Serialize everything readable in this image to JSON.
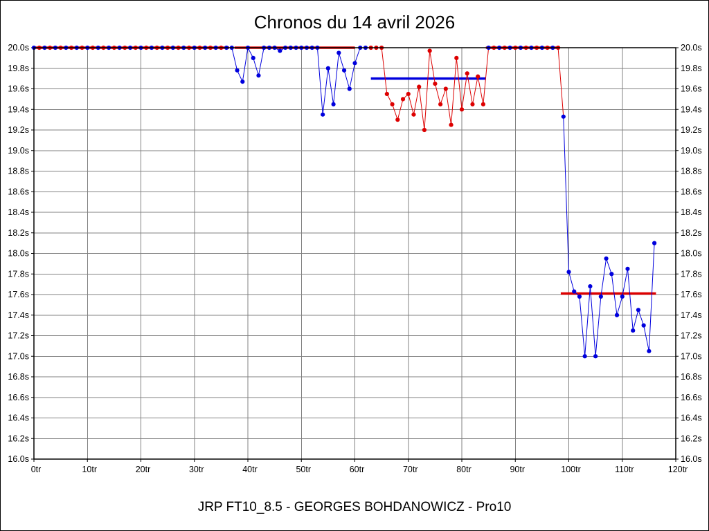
{
  "title": "Chronos du 14 avril 2026",
  "footer": "JRP FT10_8.5 - GEORGES BOHDANOWICZ - Pro10",
  "chart_data": {
    "type": "scatter",
    "title": "Chronos du 14 avril 2026",
    "x_unit": "tr",
    "y_unit": "s",
    "xlim": [
      0,
      120
    ],
    "ylim": [
      16.0,
      20.0
    ],
    "grid": true,
    "legend": "none",
    "x_ticks": [
      0,
      10,
      20,
      30,
      40,
      50,
      60,
      70,
      80,
      90,
      100,
      110,
      120
    ],
    "x_tick_labels": [
      "0tr",
      "10tr",
      "20tr",
      "30tr",
      "40tr",
      "50tr",
      "60tr",
      "70tr",
      "80tr",
      "90tr",
      "100tr",
      "110tr",
      "120tr"
    ],
    "y_ticks": [
      16.0,
      16.2,
      16.4,
      16.6,
      16.8,
      17.0,
      17.2,
      17.4,
      17.6,
      17.8,
      18.0,
      18.2,
      18.4,
      18.6,
      18.8,
      19.0,
      19.2,
      19.4,
      19.6,
      19.8,
      20.0
    ],
    "y_tick_labels": [
      "16.0s",
      "16.2s",
      "16.4s",
      "16.6s",
      "16.8s",
      "17.0s",
      "17.2s",
      "17.4s",
      "17.6s",
      "17.8s",
      "18.0s",
      "18.2s",
      "18.4s",
      "18.6s",
      "18.8s",
      "19.0s",
      "19.2s",
      "19.4s",
      "19.6s",
      "19.8s",
      "20.0s"
    ],
    "colors": {
      "blue": "#0000dd",
      "red": "#dd0000",
      "grid": "#808080",
      "frame": "#000000"
    },
    "points": [
      [
        0,
        20,
        "b"
      ],
      [
        1,
        20,
        "r"
      ],
      [
        2,
        20,
        "b"
      ],
      [
        3,
        20,
        "r"
      ],
      [
        4,
        20,
        "b"
      ],
      [
        5,
        20,
        "r"
      ],
      [
        6,
        20,
        "b"
      ],
      [
        7,
        20,
        "r"
      ],
      [
        8,
        20,
        "b"
      ],
      [
        9,
        20,
        "r"
      ],
      [
        10,
        20,
        "b"
      ],
      [
        11,
        20,
        "r"
      ],
      [
        12,
        20,
        "b"
      ],
      [
        13,
        20,
        "r"
      ],
      [
        14,
        20,
        "b"
      ],
      [
        15,
        20,
        "r"
      ],
      [
        16,
        20,
        "b"
      ],
      [
        17,
        20,
        "r"
      ],
      [
        18,
        20,
        "b"
      ],
      [
        19,
        20,
        "r"
      ],
      [
        20,
        20,
        "b"
      ],
      [
        21,
        20,
        "r"
      ],
      [
        22,
        20,
        "b"
      ],
      [
        23,
        20,
        "r"
      ],
      [
        24,
        20,
        "b"
      ],
      [
        25,
        20,
        "r"
      ],
      [
        26,
        20,
        "b"
      ],
      [
        27,
        20,
        "r"
      ],
      [
        28,
        20,
        "b"
      ],
      [
        29,
        20,
        "r"
      ],
      [
        30,
        20,
        "b"
      ],
      [
        31,
        20,
        "r"
      ],
      [
        32,
        20,
        "b"
      ],
      [
        33,
        20,
        "r"
      ],
      [
        34,
        20,
        "b"
      ],
      [
        35,
        20,
        "r"
      ],
      [
        36,
        20,
        "b"
      ],
      [
        37,
        20,
        "b"
      ],
      [
        38,
        19.78,
        "b"
      ],
      [
        39,
        19.67,
        "b"
      ],
      [
        40,
        20,
        "b"
      ],
      [
        41,
        19.9,
        "b"
      ],
      [
        42,
        19.73,
        "b"
      ],
      [
        43,
        20,
        "b"
      ],
      [
        44,
        20,
        "b"
      ],
      [
        45,
        20,
        "b"
      ],
      [
        46,
        19.97,
        "b"
      ],
      [
        47,
        20,
        "b"
      ],
      [
        48,
        20,
        "b"
      ],
      [
        49,
        20,
        "b"
      ],
      [
        50,
        20,
        "b"
      ],
      [
        51,
        20,
        "b"
      ],
      [
        52,
        20,
        "b"
      ],
      [
        53,
        20,
        "b"
      ],
      [
        54,
        19.35,
        "b"
      ],
      [
        55,
        19.8,
        "b"
      ],
      [
        56,
        19.45,
        "b"
      ],
      [
        57,
        19.95,
        "b"
      ],
      [
        58,
        19.78,
        "b"
      ],
      [
        59,
        19.6,
        "b"
      ],
      [
        60,
        19.85,
        "b"
      ],
      [
        61,
        20,
        "b"
      ],
      [
        62,
        20,
        "b"
      ],
      [
        63,
        20,
        "r"
      ],
      [
        64,
        20,
        "r"
      ],
      [
        65,
        20,
        "r"
      ],
      [
        66,
        19.55,
        "r"
      ],
      [
        67,
        19.45,
        "r"
      ],
      [
        68,
        19.3,
        "r"
      ],
      [
        69,
        19.5,
        "r"
      ],
      [
        70,
        19.55,
        "r"
      ],
      [
        71,
        19.35,
        "r"
      ],
      [
        72,
        19.62,
        "r"
      ],
      [
        73,
        19.2,
        "r"
      ],
      [
        74,
        19.97,
        "r"
      ],
      [
        75,
        19.65,
        "r"
      ],
      [
        76,
        19.45,
        "r"
      ],
      [
        77,
        19.6,
        "r"
      ],
      [
        78,
        19.25,
        "r"
      ],
      [
        79,
        19.9,
        "r"
      ],
      [
        80,
        19.4,
        "r"
      ],
      [
        81,
        19.75,
        "r"
      ],
      [
        82,
        19.45,
        "r"
      ],
      [
        83,
        19.72,
        "r"
      ],
      [
        84,
        19.45,
        "r"
      ],
      [
        85,
        20,
        "b"
      ],
      [
        86,
        20,
        "r"
      ],
      [
        87,
        20,
        "b"
      ],
      [
        88,
        20,
        "r"
      ],
      [
        89,
        20,
        "b"
      ],
      [
        90,
        20,
        "r"
      ],
      [
        91,
        20,
        "b"
      ],
      [
        92,
        20,
        "r"
      ],
      [
        93,
        20,
        "b"
      ],
      [
        94,
        20,
        "r"
      ],
      [
        95,
        20,
        "b"
      ],
      [
        96,
        20,
        "r"
      ],
      [
        97,
        20,
        "b"
      ],
      [
        98,
        20,
        "r"
      ],
      [
        99,
        19.33,
        "b"
      ],
      [
        100,
        17.82,
        "b"
      ],
      [
        101,
        17.63,
        "b"
      ],
      [
        102,
        17.58,
        "b"
      ],
      [
        103,
        17.0,
        "b"
      ],
      [
        104,
        17.68,
        "b"
      ],
      [
        105,
        17.0,
        "b"
      ],
      [
        106,
        17.58,
        "b"
      ],
      [
        107,
        17.95,
        "b"
      ],
      [
        108,
        17.8,
        "b"
      ],
      [
        109,
        17.4,
        "b"
      ],
      [
        110,
        17.58,
        "b"
      ],
      [
        111,
        17.85,
        "b"
      ],
      [
        112,
        17.25,
        "b"
      ],
      [
        113,
        17.45,
        "b"
      ],
      [
        114,
        17.3,
        "b"
      ],
      [
        115,
        17.05,
        "b"
      ],
      [
        116,
        18.1,
        "b"
      ]
    ],
    "avg_lines": [
      {
        "x1": 0,
        "x2": 36.5,
        "y": 20.0,
        "c": "r"
      },
      {
        "x1": 37.5,
        "x2": 60.0,
        "y": 20.0,
        "c": "r"
      },
      {
        "x1": 63.0,
        "x2": 84.5,
        "y": 19.7,
        "c": "b"
      },
      {
        "x1": 84.5,
        "x2": 98.0,
        "y": 20.0,
        "c": "r"
      },
      {
        "x1": 98.5,
        "x2": 116.3,
        "y": 17.61,
        "c": "r"
      }
    ]
  }
}
